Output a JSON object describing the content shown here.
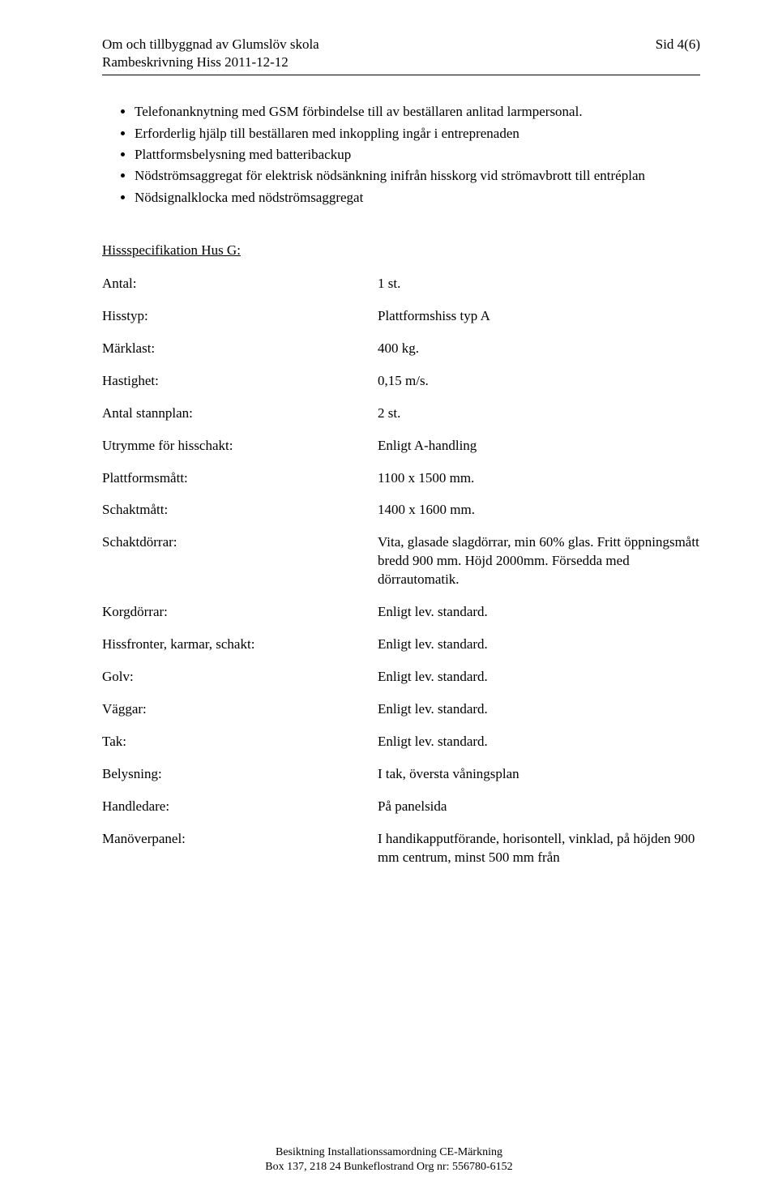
{
  "header": {
    "title_line1": "Om och tillbyggnad av Glumslöv skola",
    "title_line2": "Rambeskrivning Hiss 2011-12-12",
    "page_label_prefix": "Sid ",
    "page_number": "4(6)"
  },
  "bullets": [
    "Telefonanknytning med GSM förbindelse till av beställaren anlitad larmpersonal.",
    "Erforderlig hjälp till beställaren med inkoppling ingår i entreprenaden",
    "Plattformsbelysning med batteribackup",
    "Nödströmsaggregat för elektrisk nödsänkning inifrån hisskorg vid strömavbrott till entréplan",
    "Nödsignalklocka med nödströmsaggregat"
  ],
  "spec": {
    "title": "Hissspecifikation Hus G:",
    "rows": [
      {
        "label": "Antal:",
        "value": "1 st."
      },
      {
        "label": "Hisstyp:",
        "value": "Plattformshiss typ A"
      },
      {
        "label": "Märklast:",
        "value": "400 kg."
      },
      {
        "label": "Hastighet:",
        "value": "0,15 m/s."
      },
      {
        "label": "Antal stannplan:",
        "value": "2 st."
      },
      {
        "label": "Utrymme för hisschakt:",
        "value": "Enligt A-handling"
      },
      {
        "label": "Plattformsmått:",
        "value": "1100 x 1500 mm."
      },
      {
        "label": "Schaktmått:",
        "value": "1400 x 1600 mm."
      },
      {
        "label": "Schaktdörrar:",
        "value": "Vita, glasade slagdörrar, min 60% glas. Fritt öppningsmått bredd 900 mm. Höjd 2000mm. Försedda med dörrautomatik."
      },
      {
        "label": "Korgdörrar:",
        "value": "Enligt lev. standard."
      },
      {
        "label": "Hissfronter, karmar, schakt:",
        "value": "Enligt lev. standard."
      },
      {
        "label": "Golv:",
        "value": "Enligt lev. standard."
      },
      {
        "label": "Väggar:",
        "value": "Enligt lev. standard."
      },
      {
        "label": "Tak:",
        "value": "Enligt lev. standard."
      },
      {
        "label": "Belysning:",
        "value": "I tak, översta våningsplan"
      },
      {
        "label": "Handledare:",
        "value": "På panelsida"
      },
      {
        "label": "Manöverpanel:",
        "value": "I handikapputförande, horisontell, vinklad, på höjden 900 mm centrum, minst 500 mm från"
      }
    ]
  },
  "footer": {
    "line1": "Besiktning Installationssamordning CE-Märkning",
    "line2": "Box 137, 218 24 Bunkeflostrand Org nr: 556780-6152"
  }
}
